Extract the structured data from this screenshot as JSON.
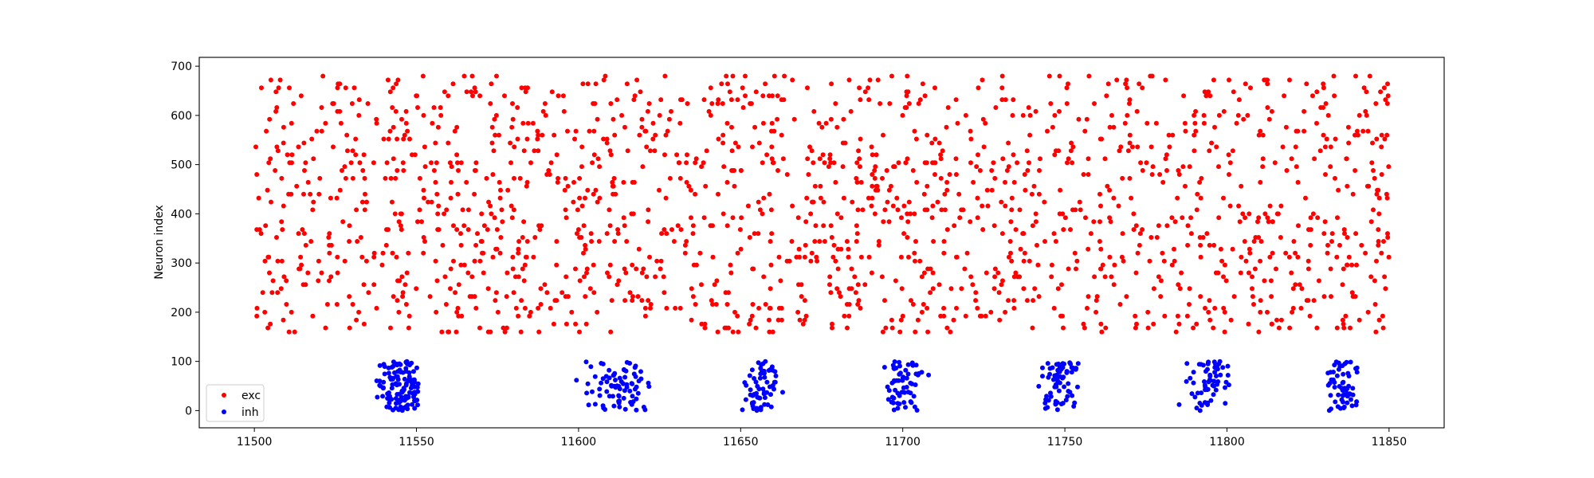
{
  "chart_data": {
    "type": "scatter",
    "title": "",
    "xlabel": "",
    "ylabel": "Neuron index",
    "xlim": [
      11483,
      11867
    ],
    "ylim": [
      -35,
      718
    ],
    "grid": false,
    "legend_position": "lower-left",
    "x_ticks": [
      "11500",
      "11550",
      "11600",
      "11650",
      "11700",
      "11750",
      "11800",
      "11850"
    ],
    "y_ticks": [
      "0",
      "100",
      "200",
      "300",
      "400",
      "500",
      "600",
      "700"
    ],
    "series": [
      {
        "name": "exc",
        "color": "#ff0000",
        "x_range": [
          11500,
          11850
        ],
        "y_range": [
          160,
          685
        ],
        "y_step": 8,
        "count": 1700,
        "seed": 20240611
      },
      {
        "name": "inh",
        "color": "#0000ff",
        "y_range": [
          0,
          100
        ],
        "bursts": [
          {
            "center": 11545,
            "spread": 5,
            "count": 120
          },
          {
            "center": 11612,
            "spread": 9,
            "count": 80
          },
          {
            "center": 11656,
            "spread": 5,
            "count": 60
          },
          {
            "center": 11700,
            "spread": 5,
            "count": 60
          },
          {
            "center": 11749,
            "spread": 5,
            "count": 70
          },
          {
            "center": 11795,
            "spread": 6,
            "count": 60
          },
          {
            "center": 11836,
            "spread": 5,
            "count": 60
          }
        ],
        "seed": 9137
      }
    ]
  }
}
